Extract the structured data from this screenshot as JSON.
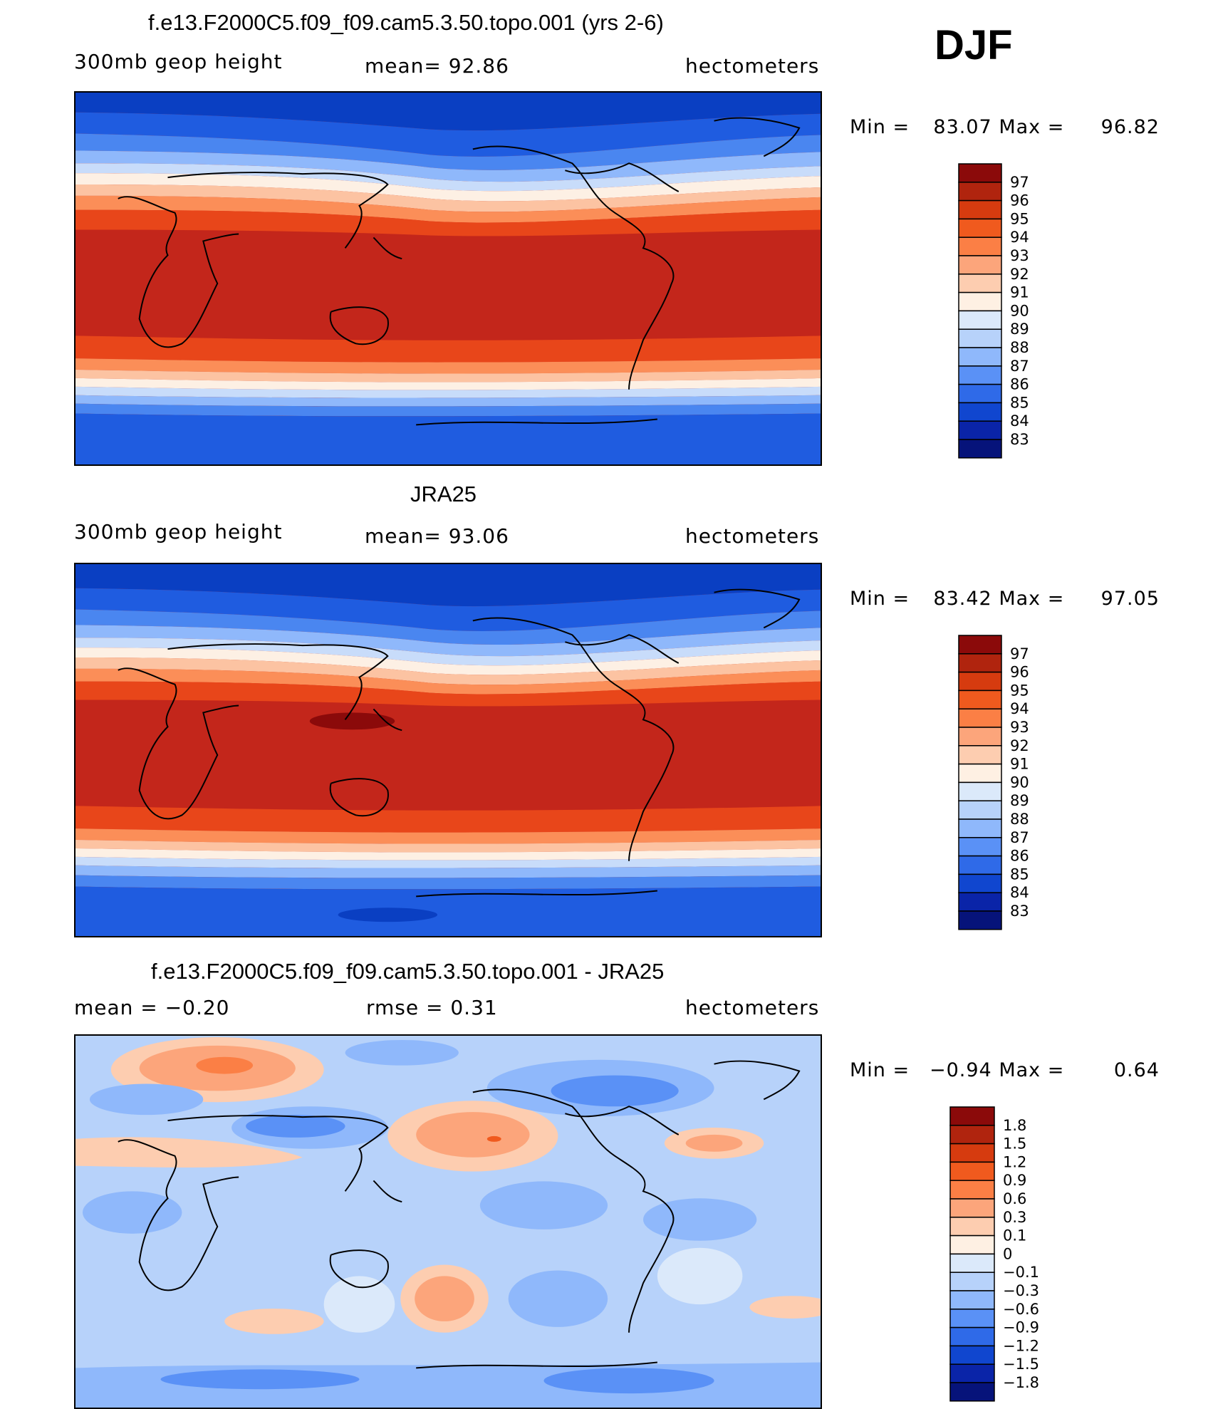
{
  "season": "DJF",
  "panels": [
    {
      "id": "model",
      "title": "f.e13.F2000C5.f09_f09.cam5.3.50.topo.001 (yrs 2-6)",
      "left_label": "300mb geop height",
      "center_label": "mean=   92.86",
      "units": "hectometers",
      "min_label": "Min =",
      "min_value": "83.07",
      "max_label": "Max =",
      "max_value": "96.82",
      "colorbar_labels": [
        "97",
        "96",
        "95",
        "94",
        "93",
        "92",
        "91",
        "90",
        "89",
        "88",
        "87",
        "86",
        "85",
        "84",
        "83"
      ],
      "colorbar_colors": [
        "#8b0a0a",
        "#b0240e",
        "#d63b0f",
        "#f05a1e",
        "#fb7f45",
        "#fca57b",
        "#fdcdb0",
        "#fef0e3",
        "#dbe9fa",
        "#b7d2fa",
        "#8fb8fb",
        "#5a91f6",
        "#2f6ae8",
        "#1046cf",
        "#0a24a8",
        "#06137a"
      ]
    },
    {
      "id": "obs",
      "title": "JRA25",
      "left_label": "300mb geop height",
      "center_label": "mean=   93.06",
      "units": "hectometers",
      "min_label": "Min =",
      "min_value": "83.42",
      "max_label": "Max =",
      "max_value": "97.05",
      "colorbar_labels": [
        "97",
        "96",
        "95",
        "94",
        "93",
        "92",
        "91",
        "90",
        "89",
        "88",
        "87",
        "86",
        "85",
        "84",
        "83"
      ],
      "colorbar_colors": [
        "#8b0a0a",
        "#b0240e",
        "#d63b0f",
        "#f05a1e",
        "#fb7f45",
        "#fca57b",
        "#fdcdb0",
        "#fef0e3",
        "#dbe9fa",
        "#b7d2fa",
        "#8fb8fb",
        "#5a91f6",
        "#2f6ae8",
        "#1046cf",
        "#0a24a8",
        "#06137a"
      ]
    },
    {
      "id": "diff",
      "title": "f.e13.F2000C5.f09_f09.cam5.3.50.topo.001 - JRA25",
      "left_label": "mean =   −0.20",
      "center_label": "rmse =    0.31",
      "units": "hectometers",
      "min_label": "Min =",
      "min_value": "−0.94",
      "max_label": "Max =",
      "max_value": "0.64",
      "colorbar_labels": [
        "1.8",
        "1.5",
        "1.2",
        "0.9",
        "0.6",
        "0.3",
        "0.1",
        "0",
        "−0.1",
        "−0.3",
        "−0.6",
        "−0.9",
        "−1.2",
        "−1.5",
        "−1.8"
      ],
      "colorbar_colors": [
        "#8b0a0a",
        "#b0240e",
        "#d63b0f",
        "#f05a1e",
        "#fb7f45",
        "#fca57b",
        "#fdcdb0",
        "#fef0e3",
        "#dbe9fa",
        "#b7d2fa",
        "#8fb8fb",
        "#5a91f6",
        "#2f6ae8",
        "#1046cf",
        "#0a24a8",
        "#06137a"
      ]
    }
  ]
}
